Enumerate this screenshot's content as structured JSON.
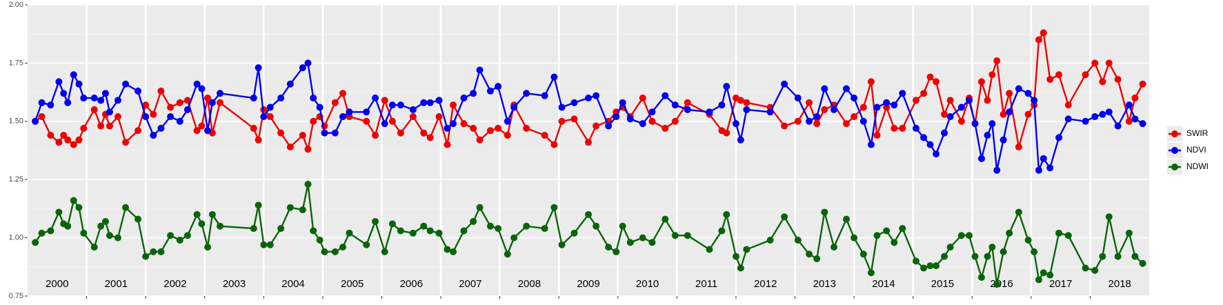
{
  "chart_data": {
    "type": "line",
    "x": [
      2000.13,
      2000.24,
      2000.39,
      2000.53,
      2000.61,
      2000.68,
      2000.78,
      2000.87,
      2000.95,
      2001.13,
      2001.24,
      2001.32,
      2001.39,
      2001.53,
      2001.66,
      2001.87,
      2002.0,
      2002.13,
      2002.26,
      2002.42,
      2002.58,
      2002.71,
      2002.87,
      2002.95,
      2003.05,
      2003.13,
      2003.26,
      2003.83,
      2003.91,
      2004.0,
      2004.11,
      2004.29,
      2004.45,
      2004.66,
      2004.75,
      2004.84,
      2004.95,
      2005.03,
      2005.21,
      2005.34,
      2005.45,
      2005.74,
      2005.89,
      2006.05,
      2006.18,
      2006.32,
      2006.53,
      2006.71,
      2006.82,
      2006.97,
      2007.11,
      2007.21,
      2007.39,
      2007.55,
      2007.66,
      2007.84,
      2007.97,
      2008.13,
      2008.24,
      2008.45,
      2008.76,
      2008.92,
      2009.05,
      2009.26,
      2009.5,
      2009.63,
      2009.84,
      2009.97,
      2010.08,
      2010.21,
      2010.42,
      2010.58,
      2010.8,
      2010.97,
      2011.18,
      2011.55,
      2011.76,
      2011.84,
      2012.0,
      2012.08,
      2012.18,
      2012.58,
      2012.82,
      2013.05,
      2013.24,
      2013.37,
      2013.5,
      2013.66,
      2013.87,
      2014.0,
      2014.16,
      2014.29,
      2014.39,
      2014.55,
      2014.68,
      2014.82,
      2015.05,
      2015.18,
      2015.29,
      2015.39,
      2015.53,
      2015.63,
      2015.82,
      2015.95,
      2016.05,
      2016.16,
      2016.26,
      2016.34,
      2016.42,
      2016.53,
      2016.63,
      2016.79,
      2016.95,
      2017.05,
      2017.13,
      2017.21,
      2017.32,
      2017.47,
      2017.63,
      2017.92,
      2018.08,
      2018.21,
      2018.32,
      2018.47,
      2018.66,
      2018.76,
      2018.89
    ],
    "series": [
      {
        "name": "SWIR",
        "color": "#f00000",
        "values": [
          1.5,
          1.52,
          1.44,
          1.41,
          1.44,
          1.42,
          1.4,
          1.42,
          1.47,
          1.55,
          1.48,
          1.53,
          1.48,
          1.52,
          1.41,
          1.46,
          1.57,
          1.53,
          1.63,
          1.56,
          1.58,
          1.59,
          1.46,
          1.48,
          1.6,
          1.45,
          1.58,
          1.47,
          1.42,
          1.55,
          1.52,
          1.45,
          1.39,
          1.44,
          1.38,
          1.5,
          1.52,
          1.48,
          1.58,
          1.62,
          1.52,
          1.5,
          1.44,
          1.59,
          1.5,
          1.45,
          1.52,
          1.45,
          1.43,
          1.52,
          1.4,
          1.57,
          1.49,
          1.47,
          1.42,
          1.46,
          1.47,
          1.44,
          1.57,
          1.47,
          1.44,
          1.4,
          1.5,
          1.51,
          1.41,
          1.48,
          1.5,
          1.54,
          1.56,
          1.52,
          1.6,
          1.5,
          1.47,
          1.5,
          1.58,
          1.53,
          1.46,
          1.45,
          1.6,
          1.59,
          1.58,
          1.56,
          1.48,
          1.5,
          1.58,
          1.49,
          1.55,
          1.57,
          1.49,
          1.52,
          1.56,
          1.67,
          1.44,
          1.56,
          1.47,
          1.47,
          1.59,
          1.62,
          1.69,
          1.67,
          1.53,
          1.59,
          1.5,
          1.6,
          1.49,
          1.67,
          1.59,
          1.7,
          1.76,
          1.53,
          1.62,
          1.39,
          1.53,
          1.57,
          1.85,
          1.88,
          1.68,
          1.7,
          1.57,
          1.7,
          1.75,
          1.67,
          1.75,
          1.68,
          1.5,
          1.6,
          1.66
        ]
      },
      {
        "name": "NDVI",
        "color": "#0000f0",
        "values": [
          1.5,
          1.58,
          1.57,
          1.67,
          1.62,
          1.58,
          1.7,
          1.66,
          1.6,
          1.6,
          1.59,
          1.62,
          1.54,
          1.59,
          1.66,
          1.63,
          1.52,
          1.44,
          1.47,
          1.52,
          1.5,
          1.55,
          1.66,
          1.64,
          1.46,
          1.58,
          1.62,
          1.6,
          1.73,
          1.52,
          1.56,
          1.6,
          1.66,
          1.73,
          1.75,
          1.6,
          1.56,
          1.45,
          1.45,
          1.52,
          1.54,
          1.54,
          1.6,
          1.49,
          1.57,
          1.57,
          1.55,
          1.58,
          1.58,
          1.59,
          1.47,
          1.49,
          1.6,
          1.62,
          1.72,
          1.63,
          1.65,
          1.5,
          1.56,
          1.62,
          1.61,
          1.69,
          1.56,
          1.58,
          1.6,
          1.61,
          1.48,
          1.52,
          1.58,
          1.51,
          1.49,
          1.54,
          1.61,
          1.57,
          1.55,
          1.54,
          1.57,
          1.65,
          1.49,
          1.42,
          1.55,
          1.54,
          1.66,
          1.6,
          1.5,
          1.52,
          1.64,
          1.55,
          1.64,
          1.6,
          1.5,
          1.4,
          1.56,
          1.58,
          1.57,
          1.62,
          1.47,
          1.43,
          1.4,
          1.36,
          1.45,
          1.52,
          1.56,
          1.59,
          1.49,
          1.34,
          1.44,
          1.49,
          1.29,
          1.42,
          1.54,
          1.64,
          1.62,
          1.59,
          1.29,
          1.34,
          1.3,
          1.43,
          1.51,
          1.5,
          1.52,
          1.53,
          1.54,
          1.48,
          1.57,
          1.51,
          1.49
        ]
      },
      {
        "name": "NDWI",
        "color": "#0a640a",
        "values": [
          0.98,
          1.02,
          1.03,
          1.11,
          1.06,
          1.05,
          1.16,
          1.13,
          1.02,
          0.96,
          1.05,
          1.07,
          1.01,
          1.0,
          1.13,
          1.08,
          0.92,
          0.94,
          0.94,
          1.01,
          0.99,
          1.01,
          1.1,
          1.06,
          0.96,
          1.1,
          1.05,
          1.04,
          1.14,
          0.97,
          0.97,
          1.04,
          1.13,
          1.12,
          1.23,
          1.03,
          0.99,
          0.94,
          0.94,
          0.96,
          1.02,
          0.97,
          1.07,
          0.94,
          1.06,
          1.03,
          1.02,
          1.05,
          1.03,
          1.02,
          0.95,
          0.94,
          1.03,
          1.07,
          1.13,
          1.05,
          1.04,
          0.93,
          1.0,
          1.05,
          1.04,
          1.13,
          0.97,
          1.02,
          1.1,
          1.05,
          0.96,
          0.94,
          1.05,
          0.98,
          1.0,
          0.98,
          1.08,
          1.01,
          1.01,
          0.95,
          1.03,
          1.1,
          0.92,
          0.87,
          0.95,
          0.99,
          1.09,
          0.99,
          0.93,
          0.91,
          1.11,
          0.96,
          1.08,
          1.0,
          0.93,
          0.85,
          1.01,
          1.03,
          0.98,
          1.04,
          0.9,
          0.87,
          0.88,
          0.88,
          0.92,
          0.96,
          1.01,
          1.01,
          0.92,
          0.83,
          0.92,
          0.96,
          0.8,
          0.94,
          1.02,
          1.11,
          0.99,
          0.94,
          0.82,
          0.85,
          0.84,
          1.02,
          1.01,
          0.87,
          0.86,
          0.92,
          1.09,
          0.92,
          1.02,
          0.92,
          0.89
        ]
      }
    ],
    "xlim": [
      2000,
      2019
    ],
    "xticks": [
      2001,
      2002,
      2003,
      2004,
      2005,
      2006,
      2007,
      2008,
      2009,
      2010,
      2011,
      2012,
      2013,
      2014,
      2015,
      2016,
      2017,
      2018
    ],
    "ylim": [
      0.75,
      2.0
    ],
    "yticks": [
      {
        "value": 0.75,
        "label": "0.75"
      },
      {
        "value": 1.0,
        "label": "1.00"
      },
      {
        "value": 1.25,
        "label": "1.25"
      },
      {
        "value": 1.5,
        "label": "1.50"
      },
      {
        "value": 1.75,
        "label": "1.75"
      },
      {
        "value": 2.0,
        "label": "2.00"
      }
    ],
    "annotations": [
      {
        "text": "2000",
        "x": 2000.5,
        "y": 0.8
      },
      {
        "text": "2001",
        "x": 2001.5,
        "y": 0.8
      },
      {
        "text": "2002",
        "x": 2002.5,
        "y": 0.8
      },
      {
        "text": "2003",
        "x": 2003.5,
        "y": 0.8
      },
      {
        "text": "2004",
        "x": 2004.5,
        "y": 0.8
      },
      {
        "text": "2005",
        "x": 2005.5,
        "y": 0.8
      },
      {
        "text": "2006",
        "x": 2006.5,
        "y": 0.8
      },
      {
        "text": "2007",
        "x": 2007.5,
        "y": 0.8
      },
      {
        "text": "2008",
        "x": 2008.5,
        "y": 0.8
      },
      {
        "text": "2009",
        "x": 2009.5,
        "y": 0.8
      },
      {
        "text": "2010",
        "x": 2010.5,
        "y": 0.8
      },
      {
        "text": "2011",
        "x": 2011.5,
        "y": 0.8
      },
      {
        "text": "2012",
        "x": 2012.5,
        "y": 0.8
      },
      {
        "text": "2013",
        "x": 2013.5,
        "y": 0.8
      },
      {
        "text": "2014",
        "x": 2014.5,
        "y": 0.8
      },
      {
        "text": "2015",
        "x": 2015.5,
        "y": 0.8
      },
      {
        "text": "2016",
        "x": 2016.5,
        "y": 0.8
      },
      {
        "text": "2017",
        "x": 2017.5,
        "y": 0.8
      },
      {
        "text": "2018",
        "x": 2018.5,
        "y": 0.8
      }
    ],
    "grid": true,
    "legend": "right"
  }
}
